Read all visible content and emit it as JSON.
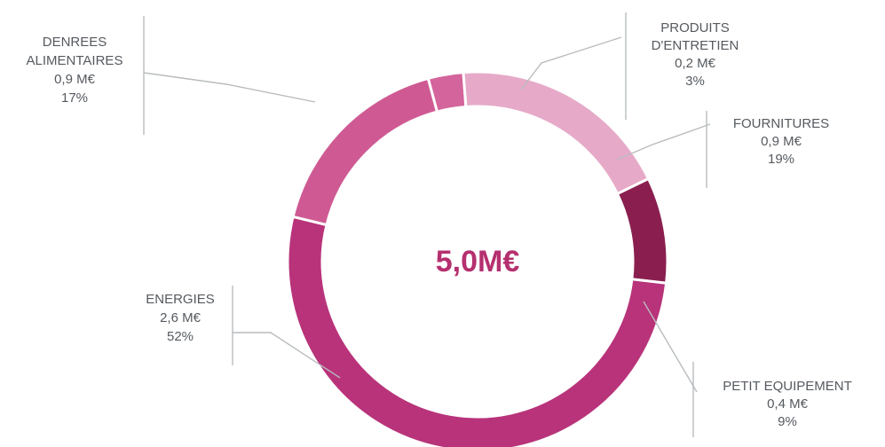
{
  "chart_data": {
    "type": "pie",
    "variant": "donut",
    "center_label": "5,0M€",
    "start_angle_deg": -15.1,
    "colors": {
      "center_text": "#b5306f",
      "leader_line": "#b8bcbf",
      "label_text": "#555a5f",
      "separator": "#ffffff"
    },
    "slices": [
      {
        "key": "produits",
        "lines": [
          "PRODUITS",
          "D'ENTRETIEN",
          "0,2 M€",
          "3%"
        ],
        "value": 0.2,
        "percent": 3,
        "color": "#d4649c"
      },
      {
        "key": "fournitures",
        "lines": [
          "FOURNITURES",
          "0,9 M€",
          "19%"
        ],
        "value": 0.9,
        "percent": 19,
        "color": "#e6aac8"
      },
      {
        "key": "petit-equipement",
        "lines": [
          "PETIT EQUIPEMENT",
          "0,4 M€",
          "9%"
        ],
        "value": 0.4,
        "percent": 9,
        "color": "#8a1f4f"
      },
      {
        "key": "energies",
        "lines": [
          "ENERGIES",
          "2,6 M€",
          "52%"
        ],
        "value": 2.6,
        "percent": 52,
        "color": "#b8337a"
      },
      {
        "key": "denrees",
        "lines": [
          "DENREES",
          "ALIMENTAIRES",
          "0,9 M€",
          "17%"
        ],
        "value": 0.9,
        "percent": 17,
        "color": "#cf5a93"
      }
    ]
  }
}
